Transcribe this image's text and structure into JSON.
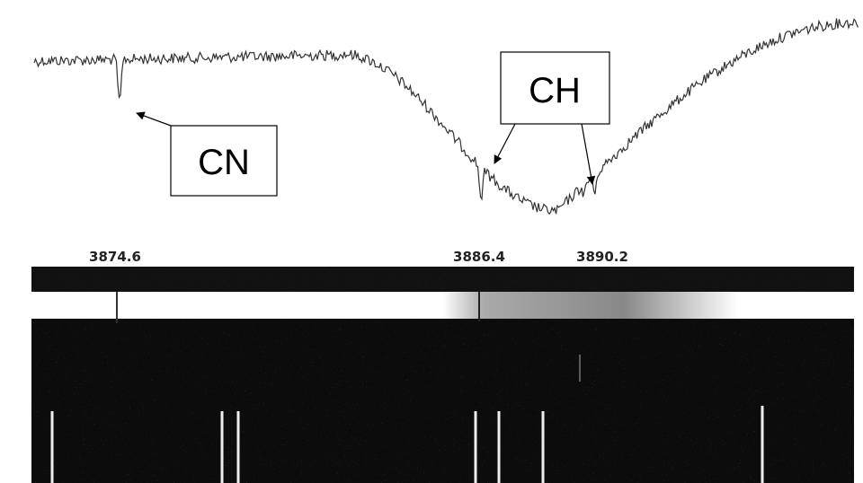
{
  "annotations": {
    "cn": "CN",
    "ch": "CH"
  },
  "wavelengths": [
    "3874.6",
    "3886.4",
    "3890.2"
  ]
}
